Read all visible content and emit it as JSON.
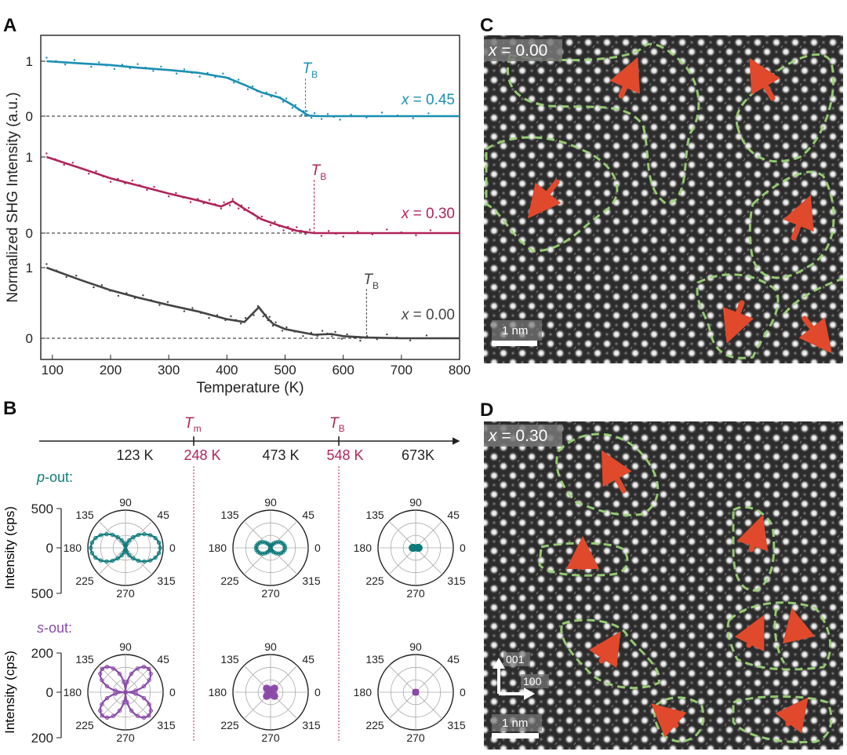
{
  "panels": {
    "a": "A",
    "b": "B",
    "c": "C",
    "d": "D"
  },
  "colors": {
    "x045": "#1a8fb3",
    "x030": "#b0245a",
    "x000": "#444444",
    "pout": "#0f7b7b",
    "sout": "#8a4aa8",
    "tm_line": "#b0245a",
    "domain": "#9fd87a",
    "arrow": "#e0492c"
  },
  "panel_a": {
    "ylabel": "Normalized SHG Intensity (a.u.)",
    "xlabel": "Temperature (K)",
    "tb_symbol": "T",
    "tb_sub": "B",
    "traces": [
      {
        "x_value": "x",
        "x_rest": " = 0.45",
        "tick_one": "1",
        "tick_zero": "0",
        "tb": 535
      },
      {
        "x_value": "x",
        "x_rest": " = 0.30",
        "tick_one": "1",
        "tick_zero": "0",
        "tb": 550
      },
      {
        "x_value": "x",
        "x_rest": " = 0.00",
        "tick_one": "1",
        "tick_zero": "0",
        "tb": 640
      }
    ]
  },
  "chart_data": {
    "type": "line",
    "title": "",
    "xlabel": "Temperature (K)",
    "ylabel": "Normalized SHG Intensity (a.u.)",
    "xlim": [
      80,
      800
    ],
    "x_ticks": [
      "100",
      "200",
      "300",
      "400",
      "500",
      "600",
      "700",
      "800"
    ],
    "series": [
      {
        "name": "x = 0.45",
        "x": [
          90,
          150,
          200,
          250,
          300,
          350,
          400,
          430,
          460,
          490,
          510,
          530,
          540,
          560,
          600,
          700,
          800
        ],
        "values": [
          1.0,
          0.96,
          0.93,
          0.88,
          0.84,
          0.79,
          0.7,
          0.57,
          0.43,
          0.34,
          0.22,
          0.08,
          0.01,
          0.0,
          0.0,
          0.0,
          0.0
        ],
        "TB": 535
      },
      {
        "name": "x = 0.30",
        "x": [
          90,
          150,
          200,
          250,
          300,
          350,
          390,
          410,
          430,
          460,
          490,
          520,
          550,
          600,
          700,
          800
        ],
        "values": [
          1.0,
          0.85,
          0.72,
          0.62,
          0.52,
          0.43,
          0.35,
          0.42,
          0.32,
          0.18,
          0.1,
          0.03,
          0.0,
          0.0,
          0.0,
          0.0
        ],
        "TB": 550
      },
      {
        "name": "x = 0.00",
        "x": [
          90,
          150,
          200,
          250,
          300,
          350,
          400,
          430,
          455,
          470,
          480,
          500,
          550,
          580,
          600,
          640,
          700,
          800
        ],
        "values": [
          1.0,
          0.82,
          0.68,
          0.57,
          0.47,
          0.38,
          0.27,
          0.23,
          0.44,
          0.28,
          0.2,
          0.13,
          0.05,
          0.06,
          0.03,
          0.01,
          0.0,
          0.0
        ],
        "TB": 640
      }
    ]
  },
  "panel_b": {
    "timeline": [
      {
        "label": "123 K",
        "accent": false
      },
      {
        "label": "248 K",
        "accent": true
      },
      {
        "label": "473 K",
        "accent": false
      },
      {
        "label": "548 K",
        "accent": true
      },
      {
        "label": "673K",
        "accent": false
      }
    ],
    "tm_symbol": "T",
    "tm_sub": "m",
    "tb_symbol": "T",
    "tb_sub": "B",
    "pout_label_italic": "p",
    "pout_label_rest": "-out:",
    "sout_label_italic": "s",
    "sout_label_rest": "-out:",
    "ylabel": "Intensity (cps)",
    "pout_ticks": [
      "500",
      "0",
      "500"
    ],
    "sout_ticks": [
      "200",
      "0",
      "200"
    ],
    "angles": [
      "90",
      "45",
      "0",
      "315",
      "270",
      "225",
      "180",
      "135"
    ],
    "pout_amplitudes": [
      1.0,
      0.42,
      0.14
    ],
    "sout_amplitudes": [
      1.0,
      0.22,
      0.05
    ]
  },
  "panel_c": {
    "x_italic": "x",
    "x_rest": " = 0.00",
    "scalebar": "1 nm"
  },
  "panel_d": {
    "x_italic": "x",
    "x_rest": " = 0.30",
    "scalebar": "1 nm",
    "axis_001": "001",
    "axis_100": "100"
  }
}
